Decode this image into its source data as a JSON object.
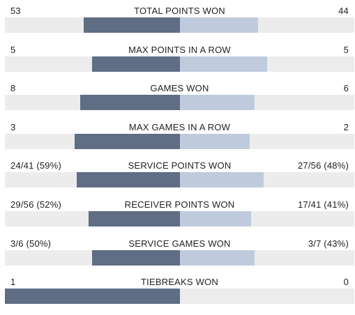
{
  "stats": [
    {
      "title": "TOTAL POINTS WON",
      "left": "53",
      "right": "44",
      "left_share": 0.55,
      "right_share": 0.45
    },
    {
      "title": "MAX POINTS IN A ROW",
      "left": "5",
      "right": "5",
      "left_share": 0.5,
      "right_share": 0.5
    },
    {
      "title": "GAMES WON",
      "left": "8",
      "right": "6",
      "left_share": 0.57,
      "right_share": 0.43
    },
    {
      "title": "MAX GAMES IN A ROW",
      "left": "3",
      "right": "2",
      "left_share": 0.6,
      "right_share": 0.4
    },
    {
      "title": "SERVICE POINTS WON",
      "left": "24/41 (59%)",
      "right": "27/56 (48%)",
      "left_share": 0.59,
      "right_share": 0.48
    },
    {
      "title": "RECEIVER POINTS WON",
      "left": "29/56 (52%)",
      "right": "17/41 (41%)",
      "left_share": 0.52,
      "right_share": 0.41
    },
    {
      "title": "SERVICE GAMES WON",
      "left": "3/6 (50%)",
      "right": "3/7 (43%)",
      "left_share": 0.5,
      "right_share": 0.43
    },
    {
      "title": "TIEBREAKS WON",
      "left": "1",
      "right": "0",
      "left_share": 1.0,
      "right_share": 0.0
    }
  ],
  "colors": {
    "left_bar": "#5f6d85",
    "right_bar": "#bfcbdc",
    "track": "#ececec"
  }
}
